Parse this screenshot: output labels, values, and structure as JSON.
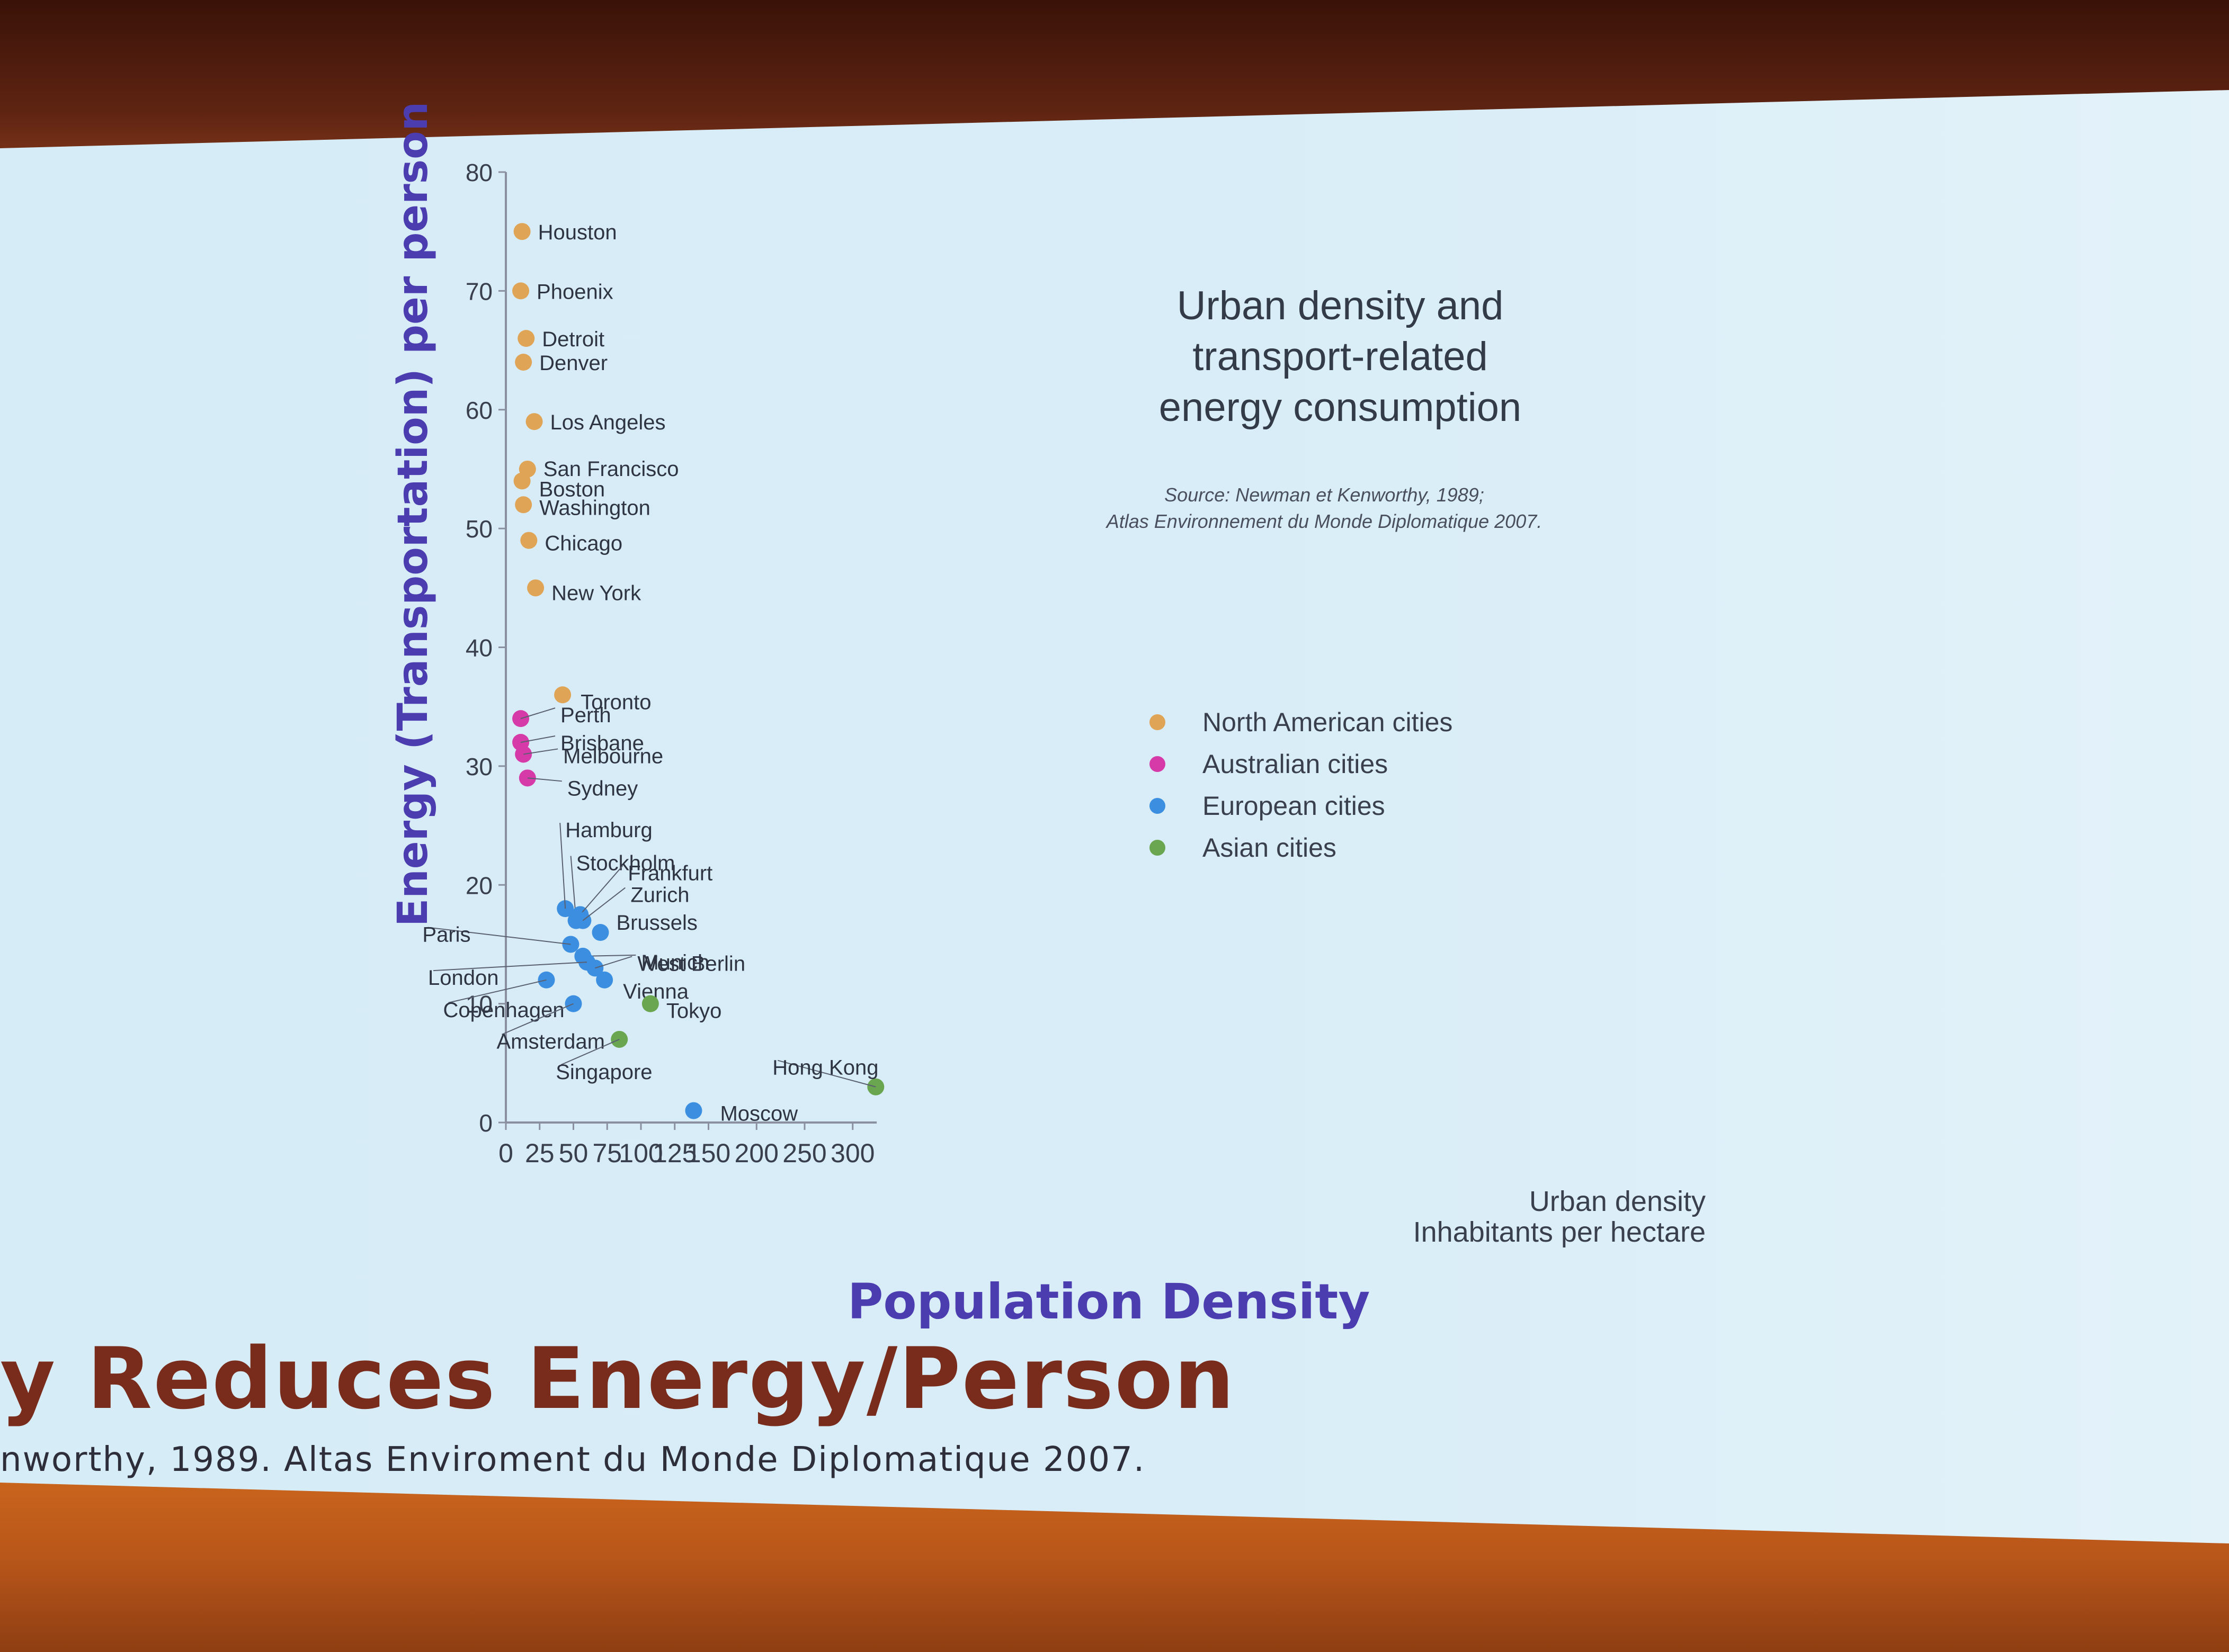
{
  "slide": {
    "title": "y Reduces Energy/Person",
    "source": "nworthy, 1989. Altas Enviroment du Monde Diplomatique 2007.",
    "x_label": "Population Density",
    "y_label": "Energy (Transportation) per person"
  },
  "chart_data": {
    "type": "scatter",
    "title_lines": [
      "Urban density and",
      "transport-related",
      "energy consumption"
    ],
    "source_lines": [
      "Source: Newman et Kenworthy, 1989;",
      "Atlas Environnement du Monde Diplomatique 2007."
    ],
    "xlabel_lines": [
      "Urban density",
      "Inhabitants per hectare"
    ],
    "ylabel": "",
    "xlim": [
      0,
      325
    ],
    "ylim": [
      0,
      80
    ],
    "x_ticks": [
      0,
      25,
      50,
      75,
      100,
      125,
      150,
      200,
      250,
      300
    ],
    "y_ticks": [
      0,
      10,
      20,
      30,
      40,
      50,
      60,
      70,
      80
    ],
    "legend_position": "right",
    "series": [
      {
        "name": "North American cities",
        "color": "#e0a456",
        "points": [
          {
            "label": "Houston",
            "x": 12,
            "y": 75
          },
          {
            "label": "Phoenix",
            "x": 11,
            "y": 70
          },
          {
            "label": "Detroit",
            "x": 15,
            "y": 66
          },
          {
            "label": "Denver",
            "x": 13,
            "y": 64
          },
          {
            "label": "Los Angeles",
            "x": 21,
            "y": 59
          },
          {
            "label": "San Francisco",
            "x": 16,
            "y": 55
          },
          {
            "label": "Boston",
            "x": 12,
            "y": 54
          },
          {
            "label": "Washington",
            "x": 13,
            "y": 52
          },
          {
            "label": "Chicago",
            "x": 17,
            "y": 49
          },
          {
            "label": "New York",
            "x": 22,
            "y": 45
          },
          {
            "label": "Toronto",
            "x": 42,
            "y": 36
          }
        ]
      },
      {
        "name": "Australian cities",
        "color": "#d63aa8",
        "points": [
          {
            "label": "Perth",
            "x": 11,
            "y": 34
          },
          {
            "label": "Brisbane",
            "x": 11,
            "y": 32
          },
          {
            "label": "Melbourne",
            "x": 13,
            "y": 31
          },
          {
            "label": "Sydney",
            "x": 16,
            "y": 29
          }
        ]
      },
      {
        "name": "European cities",
        "color": "#3c8fe0",
        "points": [
          {
            "label": "Hamburg",
            "x": 44,
            "y": 18
          },
          {
            "label": "Stockholm",
            "x": 52,
            "y": 17
          },
          {
            "label": "Frankfurt",
            "x": 55,
            "y": 17.5
          },
          {
            "label": "Zurich",
            "x": 57,
            "y": 17
          },
          {
            "label": "Brussels",
            "x": 70,
            "y": 16
          },
          {
            "label": "Paris",
            "x": 48,
            "y": 15
          },
          {
            "label": "Munich",
            "x": 57,
            "y": 14
          },
          {
            "label": "London",
            "x": 60,
            "y": 13.5
          },
          {
            "label": "West Berlin",
            "x": 66,
            "y": 13
          },
          {
            "label": "Copenhagen",
            "x": 30,
            "y": 12
          },
          {
            "label": "Vienna",
            "x": 73,
            "y": 12
          },
          {
            "label": "Amsterdam",
            "x": 50,
            "y": 10
          },
          {
            "label": "Moscow",
            "x": 139,
            "y": 1
          }
        ]
      },
      {
        "name": "Asian cities",
        "color": "#6aa650",
        "points": [
          {
            "label": "Tokyo",
            "x": 107,
            "y": 10
          },
          {
            "label": "Singapore",
            "x": 84,
            "y": 7
          },
          {
            "label": "Hong Kong",
            "x": 324,
            "y": 3
          }
        ]
      }
    ]
  }
}
